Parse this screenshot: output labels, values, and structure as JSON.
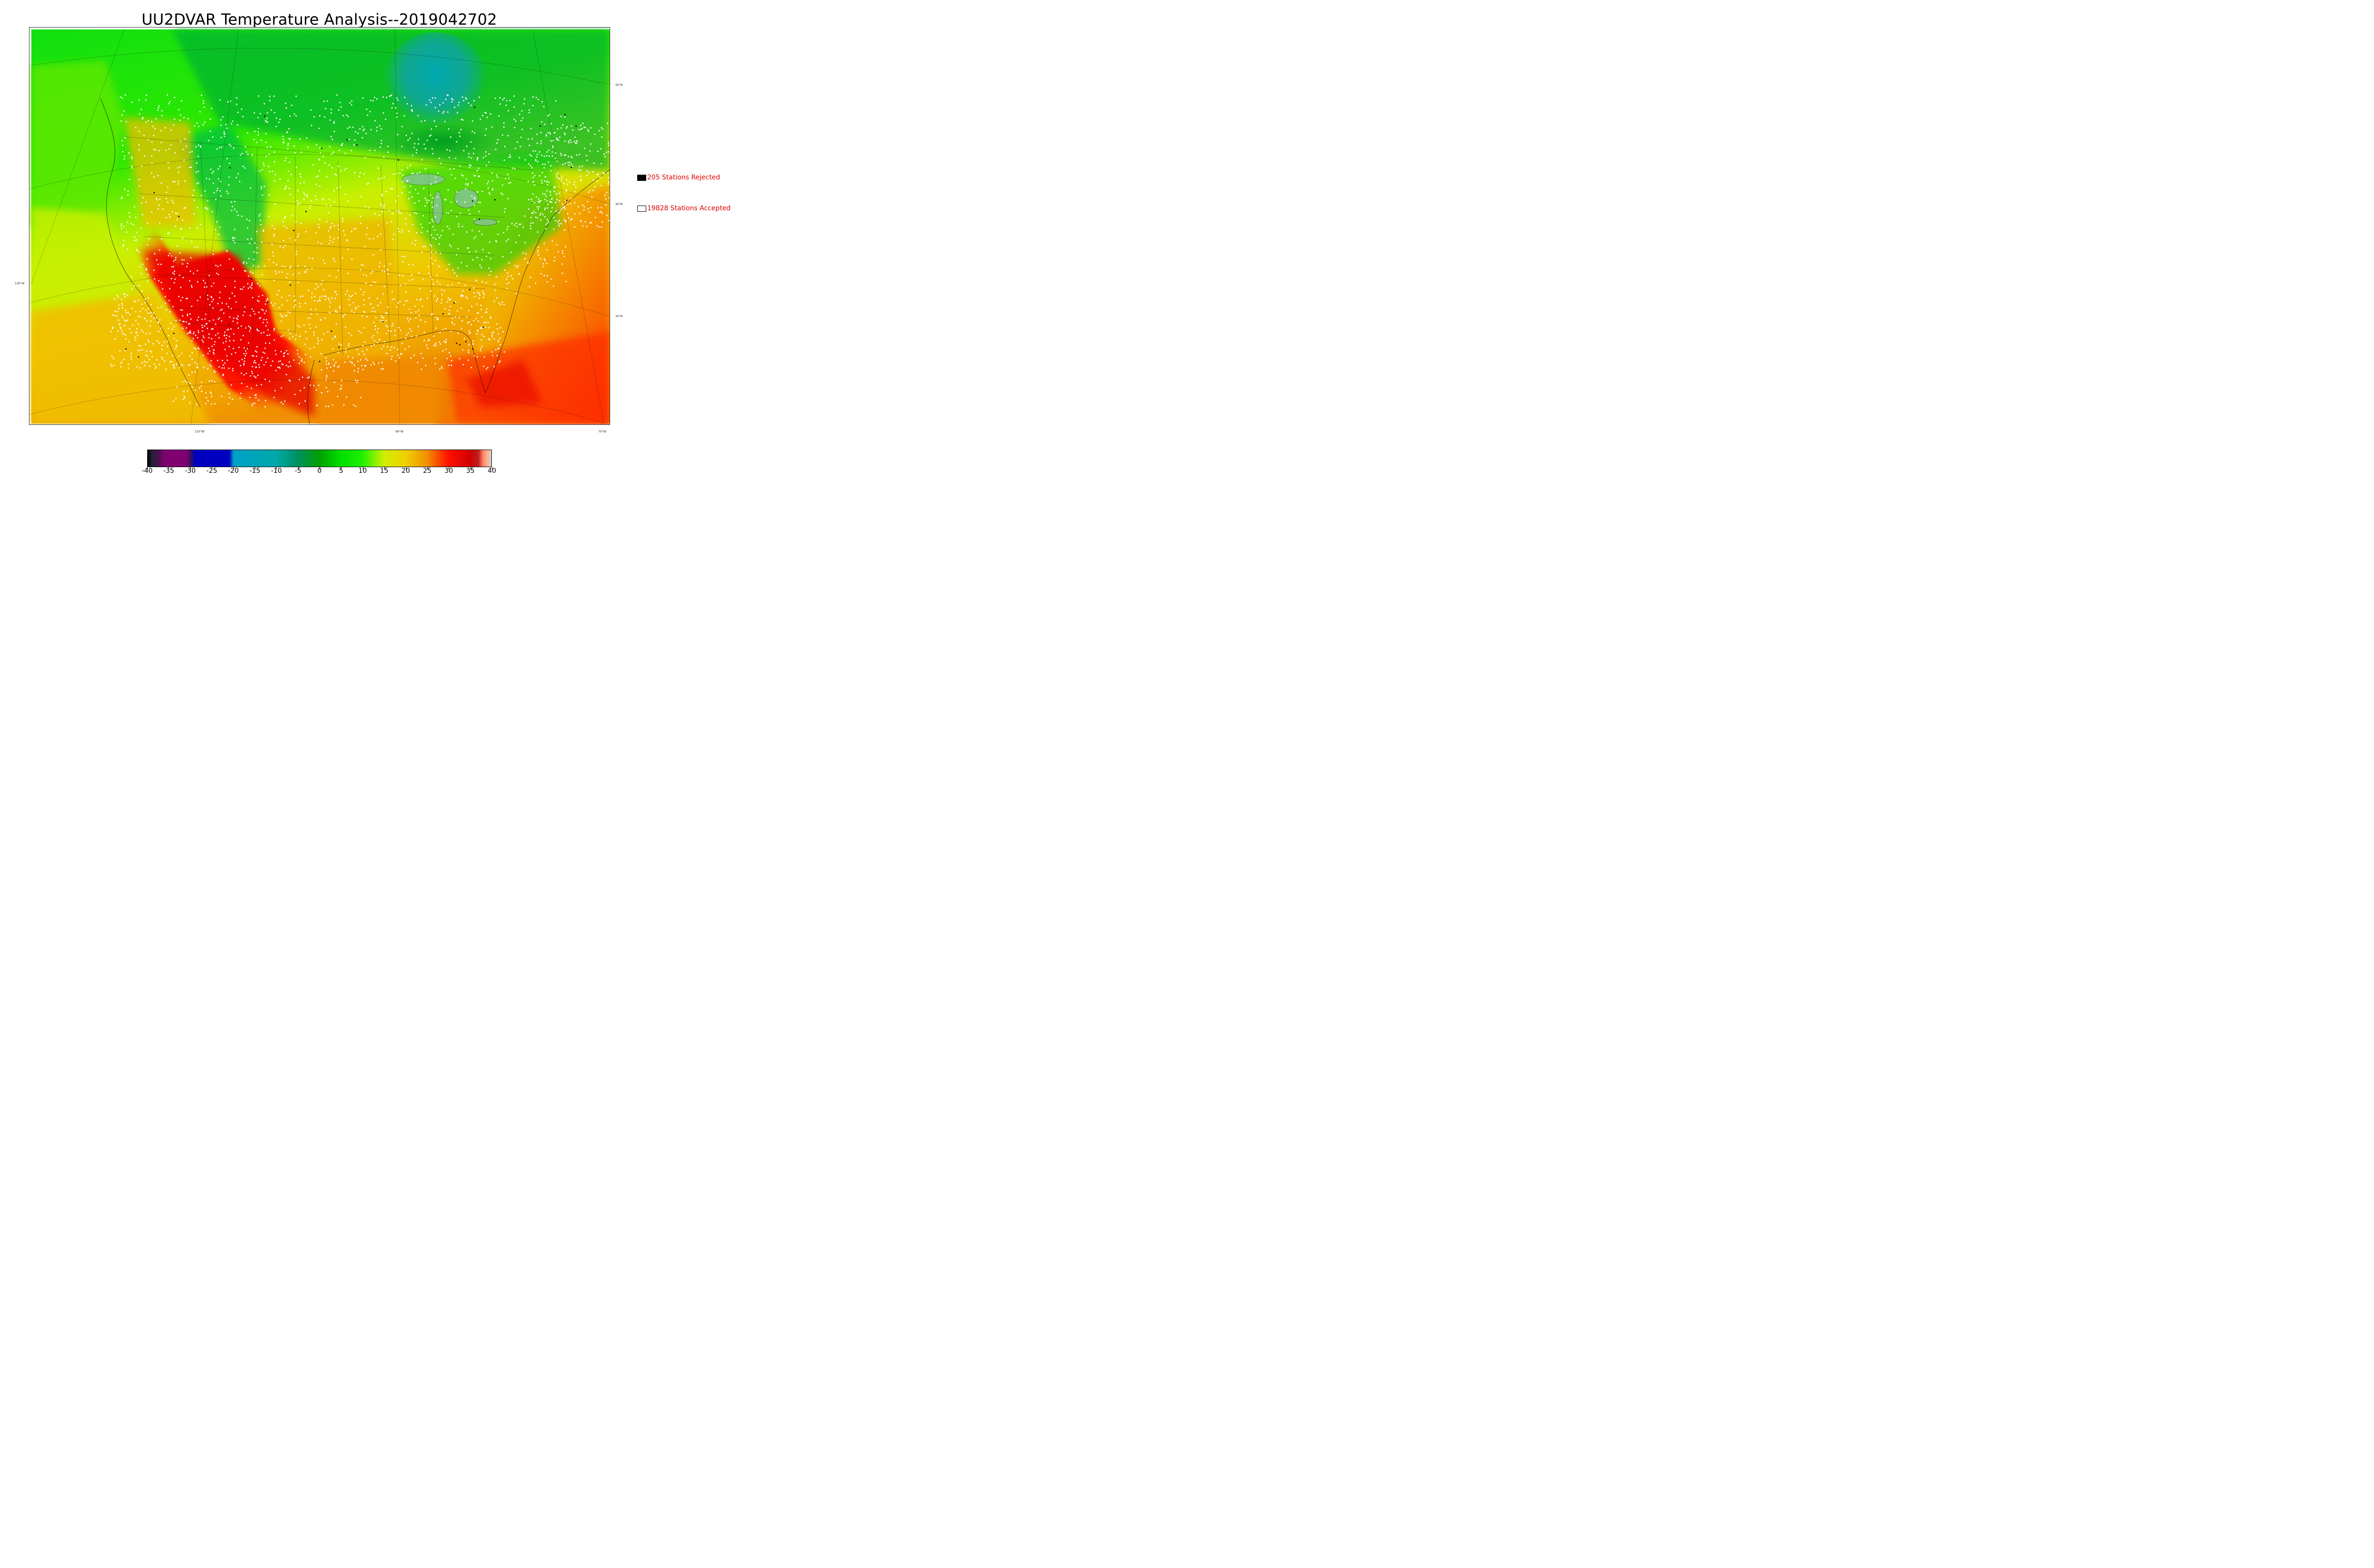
{
  "title": "UU2DVAR Temperature Analysis--2019042702",
  "graticule": {
    "lat_labels": [
      "50°N",
      "40°N",
      "30°N"
    ],
    "lon_labels": [
      "130°W",
      "110°W",
      "90°W",
      "70°W"
    ]
  },
  "legend": {
    "rejected": {
      "label": "205 Stations Rejected",
      "swatch_color": "#000000"
    },
    "accepted": {
      "label": "19828 Stations Accepted",
      "swatch_color": "#ffffff"
    }
  },
  "colorbar": {
    "tick_labels": [
      "-40",
      "-35",
      "-30",
      "-25",
      "-20",
      "-15",
      "-10",
      "-5",
      "0",
      "5",
      "10",
      "15",
      "20",
      "25",
      "30",
      "35",
      "40"
    ],
    "range": [
      -40,
      40
    ],
    "colors": [
      {
        "value": -40,
        "color": "#000000"
      },
      {
        "value": -39,
        "color": "#222233"
      },
      {
        "value": -37.5,
        "color": "#4a1050"
      },
      {
        "value": -36,
        "color": "#800070"
      },
      {
        "value": -31,
        "color": "#800070"
      },
      {
        "value": -30,
        "color": "#3a1060"
      },
      {
        "value": -29,
        "color": "#0000c0"
      },
      {
        "value": -21,
        "color": "#0000c0"
      },
      {
        "value": -20,
        "color": "#00a0c8"
      },
      {
        "value": -10,
        "color": "#00a8a8"
      },
      {
        "value": -5,
        "color": "#009060"
      },
      {
        "value": 0,
        "color": "#00a000"
      },
      {
        "value": 5,
        "color": "#00e000"
      },
      {
        "value": 10,
        "color": "#20f000"
      },
      {
        "value": 15,
        "color": "#d0f000"
      },
      {
        "value": 20,
        "color": "#f0d000"
      },
      {
        "value": 25,
        "color": "#f09000"
      },
      {
        "value": 30,
        "color": "#ff1000"
      },
      {
        "value": 35,
        "color": "#d00000"
      },
      {
        "value": 37,
        "color": "#c02020"
      },
      {
        "value": 38,
        "color": "#ff8060"
      },
      {
        "value": 39,
        "color": "#ffb090"
      },
      {
        "value": 40,
        "color": "#d0d0d0"
      }
    ]
  }
}
